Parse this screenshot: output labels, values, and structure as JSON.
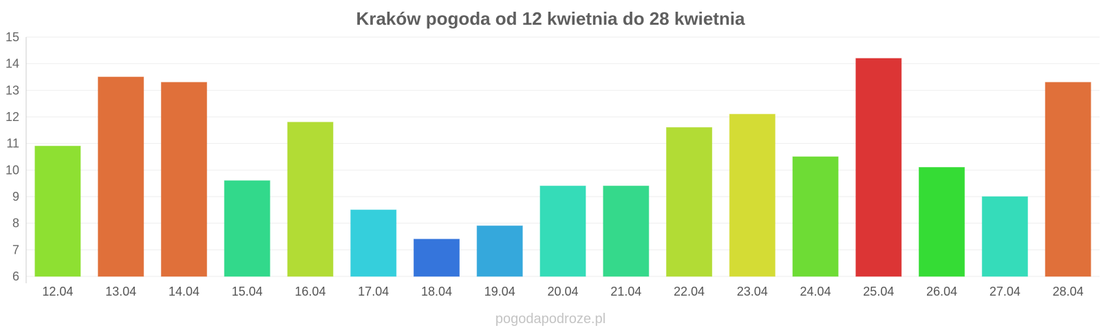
{
  "chart_data": {
    "type": "bar",
    "title": "Kraków pogoda od 12 kwietnia do 28 kwietnia",
    "xlabel": "",
    "ylabel": "",
    "categories": [
      "12.04",
      "13.04",
      "14.04",
      "15.04",
      "16.04",
      "17.04",
      "18.04",
      "19.04",
      "20.04",
      "21.04",
      "22.04",
      "23.04",
      "24.04",
      "25.04",
      "26.04",
      "27.04",
      "28.04"
    ],
    "values": [
      10.9,
      13.5,
      13.3,
      9.6,
      11.8,
      8.5,
      7.4,
      7.9,
      9.4,
      9.4,
      11.6,
      12.1,
      10.5,
      14.2,
      10.1,
      9.0,
      13.3
    ],
    "colors": [
      "#8ee032",
      "#e0703a",
      "#e0703a",
      "#32d98b",
      "#b2dc35",
      "#35cfdc",
      "#3575dc",
      "#35a8dc",
      "#35dcb8",
      "#35d98b",
      "#b2dc35",
      "#d4dc35",
      "#6edc35",
      "#dc3535",
      "#35dc35",
      "#35dcba",
      "#e0703a"
    ],
    "ylim": [
      6,
      15
    ],
    "yticks": [
      6,
      7,
      8,
      9,
      10,
      11,
      12,
      13,
      14,
      15
    ],
    "grid": true,
    "legend": "none"
  },
  "watermark": "pogodapodroze.pl"
}
